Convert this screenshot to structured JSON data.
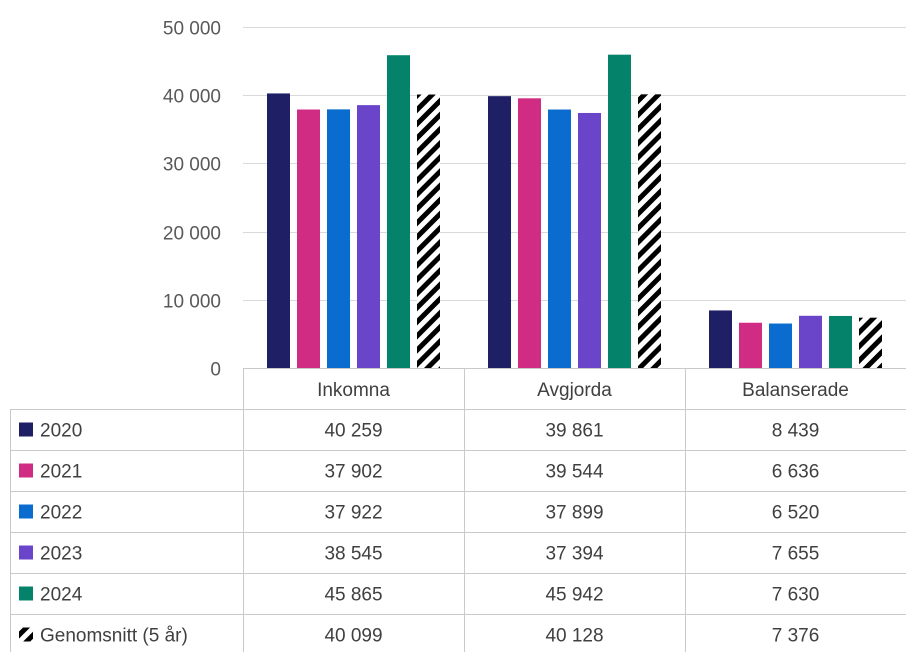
{
  "chart_data": {
    "type": "bar",
    "categories": [
      "Inkomna",
      "Avgjorda",
      "Balanserade"
    ],
    "series": [
      {
        "name": "2020",
        "values": [
          40259,
          39861,
          8439
        ],
        "color": "#1f1f66",
        "pattern": "solid"
      },
      {
        "name": "2021",
        "values": [
          37902,
          39544,
          6636
        ],
        "color": "#d02c84",
        "pattern": "solid"
      },
      {
        "name": "2022",
        "values": [
          37922,
          37899,
          6520
        ],
        "color": "#0a6ccf",
        "pattern": "solid"
      },
      {
        "name": "2023",
        "values": [
          38545,
          37394,
          7655
        ],
        "color": "#6a45c9",
        "pattern": "solid"
      },
      {
        "name": "2024",
        "values": [
          45865,
          45942,
          7630
        ],
        "color": "#05836a",
        "pattern": "solid"
      },
      {
        "name": "Genomsnitt (5 år)",
        "values": [
          40099,
          40128,
          7376
        ],
        "color": "#000000",
        "pattern": "diagonal-stripes"
      }
    ],
    "value_labels": [
      [
        "40 259",
        "39 861",
        "8 439"
      ],
      [
        "37 902",
        "39 544",
        "6 636"
      ],
      [
        "37 922",
        "37 899",
        "6 520"
      ],
      [
        "38 545",
        "37 394",
        "7 655"
      ],
      [
        "45 865",
        "45 942",
        "7 630"
      ],
      [
        "40 099",
        "40 128",
        "7 376"
      ]
    ],
    "y_ticks": [
      0,
      10000,
      20000,
      30000,
      40000,
      50000
    ],
    "y_tick_labels": [
      "0",
      "10 000",
      "20 000",
      "30 000",
      "40 000",
      "50 000"
    ],
    "ylim": [
      0,
      50000
    ],
    "title": "",
    "xlabel": "",
    "ylabel": "",
    "grid": true,
    "legend": "data-table-below"
  }
}
